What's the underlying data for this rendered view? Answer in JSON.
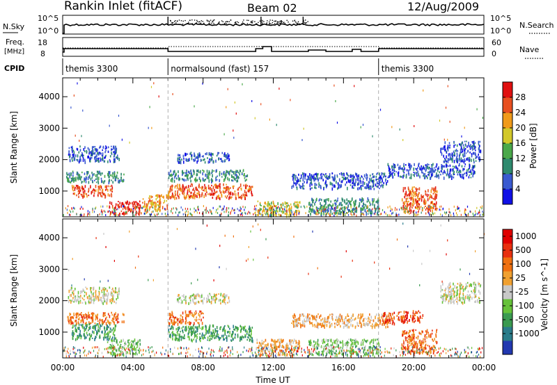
{
  "header": {
    "title": "Rankin Inlet (fitACF)",
    "beam": "Beam 02",
    "date": "12/Aug/2009"
  },
  "status_panels": {
    "nsky_label": "N.Sky",
    "nsky_tick_top": "10^5",
    "nsky_tick_bottom": "10^0",
    "nsearch_label": "N.Search",
    "nsearch_tick_top": "10^5",
    "nsearch_tick_bottom": "10^0",
    "freq_label": "Freq.",
    "freq_unit": "[MHz]",
    "freq_tick_top": "18",
    "freq_tick_bottom": "8",
    "nave_label": "Nave",
    "nave_tick_top": "60",
    "nave_tick_bottom": "0",
    "cpid_label": "CPID",
    "cpid_segments": [
      {
        "label": "themis 3300",
        "start_hour": 0,
        "end_hour": 6
      },
      {
        "label": "normalsound (fast) 157",
        "start_hour": 6,
        "end_hour": 18
      },
      {
        "label": "themis 3300",
        "start_hour": 18,
        "end_hour": 24
      }
    ]
  },
  "chart_data": [
    {
      "type": "heatmap",
      "name": "power",
      "xlabel": "",
      "ylabel": "Slant Range [km]",
      "xlim": [
        0,
        24
      ],
      "ylim": [
        180,
        4600
      ],
      "yticks": [
        1000,
        2000,
        3000,
        4000
      ],
      "colorbar": {
        "label": "Power [dB]",
        "ticks": [
          "4",
          "8",
          "12",
          "16",
          "20",
          "24",
          "28"
        ],
        "colors": [
          "#1010e6",
          "#3a5ad0",
          "#2e8a6e",
          "#4aa84a",
          "#d2c82a",
          "#f09a1a",
          "#e85020",
          "#e01010"
        ]
      },
      "echo_regions": [
        {
          "t0": 0.3,
          "t1": 3.2,
          "r0": 1950,
          "r1": 2450,
          "level": 1
        },
        {
          "t0": 0.5,
          "t1": 2.8,
          "r0": 850,
          "r1": 1200,
          "level": 6
        },
        {
          "t0": 0.2,
          "t1": 3.5,
          "r0": 1300,
          "r1": 1650,
          "level": 2
        },
        {
          "t0": 2.5,
          "t1": 4.4,
          "r0": 300,
          "r1": 700,
          "level": 7
        },
        {
          "t0": 4.5,
          "t1": 6.0,
          "r0": 400,
          "r1": 900,
          "level": 5
        },
        {
          "t0": 6.0,
          "t1": 10.8,
          "r0": 800,
          "r1": 1250,
          "level": 6
        },
        {
          "t0": 6.0,
          "t1": 10.5,
          "r0": 1350,
          "r1": 1700,
          "level": 2
        },
        {
          "t0": 6.5,
          "t1": 9.5,
          "r0": 1950,
          "r1": 2250,
          "level": 1
        },
        {
          "t0": 11.0,
          "t1": 13.5,
          "r0": 250,
          "r1": 700,
          "level": 4
        },
        {
          "t0": 13.0,
          "t1": 18.5,
          "r0": 1100,
          "r1": 1600,
          "level": 1
        },
        {
          "t0": 14.0,
          "t1": 18.0,
          "r0": 300,
          "r1": 800,
          "level": 2
        },
        {
          "t0": 18.5,
          "t1": 23.5,
          "r0": 1450,
          "r1": 1900,
          "level": 1
        },
        {
          "t0": 19.3,
          "t1": 21.3,
          "r0": 350,
          "r1": 1150,
          "level": 6
        },
        {
          "t0": 21.5,
          "t1": 23.8,
          "r0": 1950,
          "r1": 2600,
          "level": 1
        }
      ]
    },
    {
      "type": "heatmap",
      "name": "velocity",
      "xlabel": "Time UT",
      "ylabel": "Slant Range [km]",
      "xlim": [
        0,
        24
      ],
      "ylim": [
        180,
        4600
      ],
      "xticks": [
        "00:00",
        "04:00",
        "08:00",
        "12:00",
        "16:00",
        "20:00",
        "00:00"
      ],
      "yticks": [
        1000,
        2000,
        3000,
        4000
      ],
      "colorbar": {
        "label": "Velocity [m s^-1]",
        "ticks": [
          "1000",
          "500",
          "100",
          "25",
          "-25",
          "-100",
          "-500",
          "-1000"
        ],
        "colors": [
          "#2238b0",
          "#2a7c8a",
          "#3a9a50",
          "#66c23a",
          "#c8c8c8",
          "#f0a030",
          "#f07010",
          "#e83010",
          "#e00000"
        ]
      },
      "echo_regions": [
        {
          "t0": 0.3,
          "t1": 3.2,
          "r0": 1950,
          "r1": 2450,
          "level": 4
        },
        {
          "t0": 0.5,
          "t1": 3.0,
          "r0": 800,
          "r1": 1300,
          "level": 2
        },
        {
          "t0": 0.2,
          "t1": 3.5,
          "r0": 1300,
          "r1": 1650,
          "level": 6
        },
        {
          "t0": 2.5,
          "t1": 4.4,
          "r0": 300,
          "r1": 800,
          "level": 3
        },
        {
          "t0": 6.0,
          "t1": 10.8,
          "r0": 750,
          "r1": 1250,
          "level": 2
        },
        {
          "t0": 6.0,
          "t1": 8.0,
          "r0": 1300,
          "r1": 1700,
          "level": 6
        },
        {
          "t0": 6.5,
          "t1": 9.5,
          "r0": 1950,
          "r1": 2250,
          "level": 4
        },
        {
          "t0": 11.0,
          "t1": 13.5,
          "r0": 250,
          "r1": 800,
          "level": 5
        },
        {
          "t0": 13.0,
          "t1": 18.5,
          "r0": 1200,
          "r1": 1600,
          "level": 5
        },
        {
          "t0": 14.0,
          "t1": 18.0,
          "r0": 300,
          "r1": 800,
          "level": 3
        },
        {
          "t0": 18.2,
          "t1": 20.5,
          "r0": 1300,
          "r1": 1700,
          "level": 7
        },
        {
          "t0": 19.3,
          "t1": 21.3,
          "r0": 350,
          "r1": 1100,
          "level": 6
        },
        {
          "t0": 21.5,
          "t1": 23.8,
          "r0": 1950,
          "r1": 2600,
          "level": 4
        }
      ]
    }
  ]
}
